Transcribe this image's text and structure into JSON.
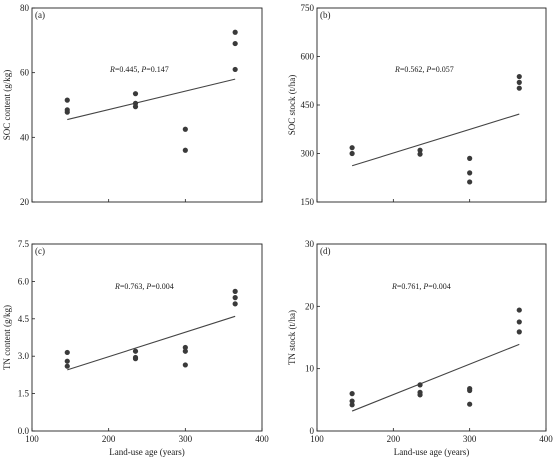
{
  "xlabel": "Land-use age (years)",
  "chart_data": [
    {
      "type": "scatter",
      "panel_label": "(a)",
      "ylabel": "SOC content (g/kg)",
      "xlim": [
        100,
        400
      ],
      "ylim": [
        20,
        80
      ],
      "xticks": [
        100,
        200,
        300,
        400
      ],
      "yticks": [
        20,
        40,
        60,
        80
      ],
      "xtick_labels_shown": false,
      "annotation": {
        "R_label": "R",
        "R_value": "=0.445, ",
        "P_label": "P",
        "P_value": "=0.147"
      },
      "points": [
        {
          "x": 146,
          "y": 51.5
        },
        {
          "x": 146,
          "y": 48.5
        },
        {
          "x": 146,
          "y": 47.8
        },
        {
          "x": 235,
          "y": 53.5
        },
        {
          "x": 235,
          "y": 50.5
        },
        {
          "x": 235,
          "y": 49.5
        },
        {
          "x": 300,
          "y": 42.5
        },
        {
          "x": 300,
          "y": 36.0
        },
        {
          "x": 365,
          "y": 72.5
        },
        {
          "x": 365,
          "y": 69.0
        },
        {
          "x": 365,
          "y": 61.0
        }
      ],
      "fit_line": [
        {
          "x": 146,
          "y": 45.5
        },
        {
          "x": 365,
          "y": 58.0
        }
      ]
    },
    {
      "type": "scatter",
      "panel_label": "(b)",
      "ylabel": "SOC stock (t/ha)",
      "xlim": [
        100,
        400
      ],
      "ylim": [
        150,
        750
      ],
      "xticks": [
        100,
        200,
        300,
        400
      ],
      "yticks": [
        150,
        300,
        450,
        600,
        750
      ],
      "xtick_labels_shown": false,
      "annotation": {
        "R_label": "R",
        "R_value": "=0.562, ",
        "P_label": "P",
        "P_value": "=0.057"
      },
      "points": [
        {
          "x": 146,
          "y": 318
        },
        {
          "x": 146,
          "y": 300
        },
        {
          "x": 235,
          "y": 310
        },
        {
          "x": 235,
          "y": 298
        },
        {
          "x": 300,
          "y": 285
        },
        {
          "x": 300,
          "y": 240
        },
        {
          "x": 300,
          "y": 212
        },
        {
          "x": 365,
          "y": 538
        },
        {
          "x": 365,
          "y": 520
        },
        {
          "x": 365,
          "y": 502
        }
      ],
      "fit_line": [
        {
          "x": 146,
          "y": 262
        },
        {
          "x": 365,
          "y": 422
        }
      ]
    },
    {
      "type": "scatter",
      "panel_label": "(c)",
      "ylabel": "TN content (g/kg)",
      "xlim": [
        100,
        400
      ],
      "ylim": [
        0.0,
        7.5
      ],
      "xticks": [
        100,
        200,
        300,
        400
      ],
      "yticks": [
        0.0,
        1.5,
        3.0,
        4.5,
        6.0,
        7.5
      ],
      "ytick_labels": [
        "0.0",
        "1.5",
        "3.0",
        "4.5",
        "6.0",
        "7.5"
      ],
      "xtick_labels_shown": true,
      "annotation": {
        "R_label": "R",
        "R_value": "=0.763, ",
        "P_label": "P",
        "P_value": "=0.004"
      },
      "points": [
        {
          "x": 146,
          "y": 3.15
        },
        {
          "x": 146,
          "y": 2.8
        },
        {
          "x": 146,
          "y": 2.6
        },
        {
          "x": 235,
          "y": 3.2
        },
        {
          "x": 235,
          "y": 2.95
        },
        {
          "x": 235,
          "y": 2.9
        },
        {
          "x": 300,
          "y": 3.35
        },
        {
          "x": 300,
          "y": 3.2
        },
        {
          "x": 300,
          "y": 2.65
        },
        {
          "x": 365,
          "y": 5.6
        },
        {
          "x": 365,
          "y": 5.35
        },
        {
          "x": 365,
          "y": 5.1
        }
      ],
      "fit_line": [
        {
          "x": 146,
          "y": 2.45
        },
        {
          "x": 365,
          "y": 4.6
        }
      ]
    },
    {
      "type": "scatter",
      "panel_label": "(d)",
      "ylabel": "TN stock (t/ha)",
      "xlim": [
        100,
        400
      ],
      "ylim": [
        0,
        30
      ],
      "xticks": [
        100,
        200,
        300,
        400
      ],
      "yticks": [
        0,
        10,
        20,
        30
      ],
      "xtick_labels_shown": true,
      "annotation": {
        "R_label": "R",
        "R_value": "=0.761, ",
        "P_label": "P",
        "P_value": "=0.004"
      },
      "points": [
        {
          "x": 146,
          "y": 6.0
        },
        {
          "x": 146,
          "y": 4.8
        },
        {
          "x": 146,
          "y": 4.2
        },
        {
          "x": 235,
          "y": 7.4
        },
        {
          "x": 235,
          "y": 6.2
        },
        {
          "x": 235,
          "y": 5.8
        },
        {
          "x": 300,
          "y": 6.8
        },
        {
          "x": 300,
          "y": 6.5
        },
        {
          "x": 300,
          "y": 4.3
        },
        {
          "x": 365,
          "y": 19.4
        },
        {
          "x": 365,
          "y": 17.5
        },
        {
          "x": 365,
          "y": 15.9
        }
      ],
      "fit_line": [
        {
          "x": 146,
          "y": 3.2
        },
        {
          "x": 365,
          "y": 13.9
        }
      ]
    }
  ]
}
